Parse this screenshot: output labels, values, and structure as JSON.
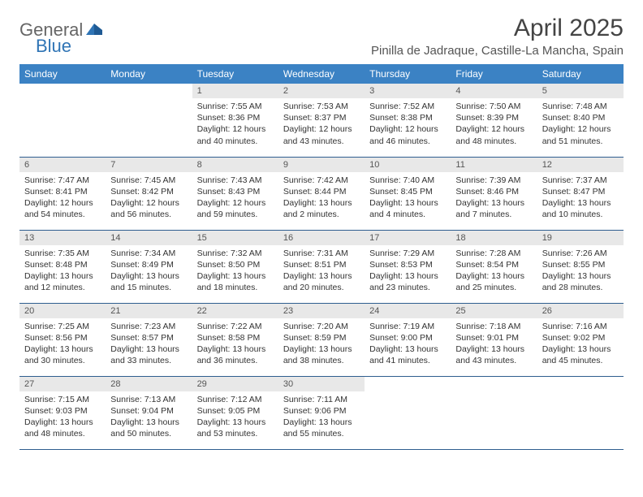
{
  "brand": {
    "general": "General",
    "blue": "Blue"
  },
  "title": "April 2025",
  "location": "Pinilla de Jadraque, Castille-La Mancha, Spain",
  "colors": {
    "header_bg": "#3b82c4",
    "header_text": "#ffffff",
    "daynum_bg": "#e8e8e8",
    "row_border": "#2f5e8f",
    "logo_gray": "#666666",
    "logo_blue": "#2f74b5"
  },
  "typography": {
    "title_fontsize": 30,
    "location_fontsize": 15,
    "header_fontsize": 12,
    "body_fontsize": 10.5
  },
  "columns": [
    "Sunday",
    "Monday",
    "Tuesday",
    "Wednesday",
    "Thursday",
    "Friday",
    "Saturday"
  ],
  "weeks": [
    [
      null,
      null,
      {
        "n": "1",
        "sr": "7:55 AM",
        "ss": "8:36 PM",
        "dl": "12 hours and 40 minutes."
      },
      {
        "n": "2",
        "sr": "7:53 AM",
        "ss": "8:37 PM",
        "dl": "12 hours and 43 minutes."
      },
      {
        "n": "3",
        "sr": "7:52 AM",
        "ss": "8:38 PM",
        "dl": "12 hours and 46 minutes."
      },
      {
        "n": "4",
        "sr": "7:50 AM",
        "ss": "8:39 PM",
        "dl": "12 hours and 48 minutes."
      },
      {
        "n": "5",
        "sr": "7:48 AM",
        "ss": "8:40 PM",
        "dl": "12 hours and 51 minutes."
      }
    ],
    [
      {
        "n": "6",
        "sr": "7:47 AM",
        "ss": "8:41 PM",
        "dl": "12 hours and 54 minutes."
      },
      {
        "n": "7",
        "sr": "7:45 AM",
        "ss": "8:42 PM",
        "dl": "12 hours and 56 minutes."
      },
      {
        "n": "8",
        "sr": "7:43 AM",
        "ss": "8:43 PM",
        "dl": "12 hours and 59 minutes."
      },
      {
        "n": "9",
        "sr": "7:42 AM",
        "ss": "8:44 PM",
        "dl": "13 hours and 2 minutes."
      },
      {
        "n": "10",
        "sr": "7:40 AM",
        "ss": "8:45 PM",
        "dl": "13 hours and 4 minutes."
      },
      {
        "n": "11",
        "sr": "7:39 AM",
        "ss": "8:46 PM",
        "dl": "13 hours and 7 minutes."
      },
      {
        "n": "12",
        "sr": "7:37 AM",
        "ss": "8:47 PM",
        "dl": "13 hours and 10 minutes."
      }
    ],
    [
      {
        "n": "13",
        "sr": "7:35 AM",
        "ss": "8:48 PM",
        "dl": "13 hours and 12 minutes."
      },
      {
        "n": "14",
        "sr": "7:34 AM",
        "ss": "8:49 PM",
        "dl": "13 hours and 15 minutes."
      },
      {
        "n": "15",
        "sr": "7:32 AM",
        "ss": "8:50 PM",
        "dl": "13 hours and 18 minutes."
      },
      {
        "n": "16",
        "sr": "7:31 AM",
        "ss": "8:51 PM",
        "dl": "13 hours and 20 minutes."
      },
      {
        "n": "17",
        "sr": "7:29 AM",
        "ss": "8:53 PM",
        "dl": "13 hours and 23 minutes."
      },
      {
        "n": "18",
        "sr": "7:28 AM",
        "ss": "8:54 PM",
        "dl": "13 hours and 25 minutes."
      },
      {
        "n": "19",
        "sr": "7:26 AM",
        "ss": "8:55 PM",
        "dl": "13 hours and 28 minutes."
      }
    ],
    [
      {
        "n": "20",
        "sr": "7:25 AM",
        "ss": "8:56 PM",
        "dl": "13 hours and 30 minutes."
      },
      {
        "n": "21",
        "sr": "7:23 AM",
        "ss": "8:57 PM",
        "dl": "13 hours and 33 minutes."
      },
      {
        "n": "22",
        "sr": "7:22 AM",
        "ss": "8:58 PM",
        "dl": "13 hours and 36 minutes."
      },
      {
        "n": "23",
        "sr": "7:20 AM",
        "ss": "8:59 PM",
        "dl": "13 hours and 38 minutes."
      },
      {
        "n": "24",
        "sr": "7:19 AM",
        "ss": "9:00 PM",
        "dl": "13 hours and 41 minutes."
      },
      {
        "n": "25",
        "sr": "7:18 AM",
        "ss": "9:01 PM",
        "dl": "13 hours and 43 minutes."
      },
      {
        "n": "26",
        "sr": "7:16 AM",
        "ss": "9:02 PM",
        "dl": "13 hours and 45 minutes."
      }
    ],
    [
      {
        "n": "27",
        "sr": "7:15 AM",
        "ss": "9:03 PM",
        "dl": "13 hours and 48 minutes."
      },
      {
        "n": "28",
        "sr": "7:13 AM",
        "ss": "9:04 PM",
        "dl": "13 hours and 50 minutes."
      },
      {
        "n": "29",
        "sr": "7:12 AM",
        "ss": "9:05 PM",
        "dl": "13 hours and 53 minutes."
      },
      {
        "n": "30",
        "sr": "7:11 AM",
        "ss": "9:06 PM",
        "dl": "13 hours and 55 minutes."
      },
      null,
      null,
      null
    ]
  ],
  "labels": {
    "sunrise": "Sunrise:",
    "sunset": "Sunset:",
    "daylight": "Daylight:"
  }
}
